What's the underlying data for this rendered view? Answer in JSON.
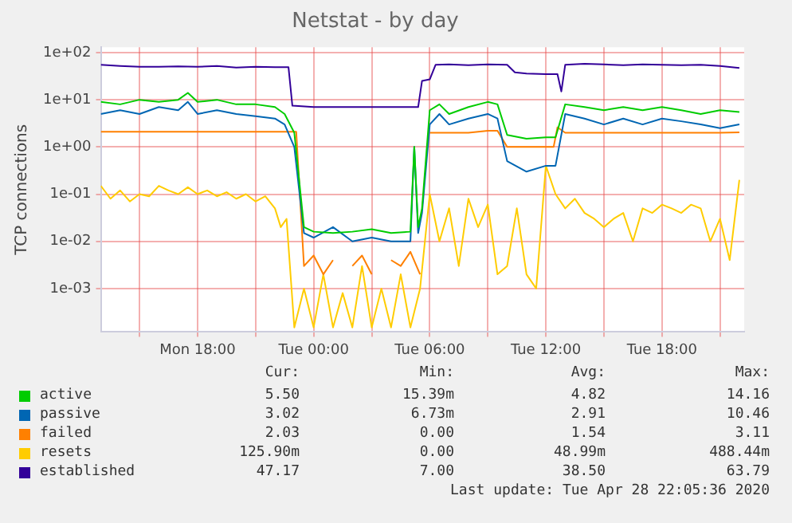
{
  "chart_data": {
    "type": "line",
    "title": "Netstat - by day",
    "ylabel": "TCP connections",
    "log": "y",
    "grid": true,
    "legend": "bottom",
    "xlim": [
      "2020-04-27T13:00",
      "2020-04-28T22:15"
    ],
    "xticks": [
      {
        "value": "2020-04-27T15:00",
        "label": null
      },
      {
        "value": "2020-04-27T18:00",
        "label": "Mon 18:00"
      },
      {
        "value": "2020-04-27T21:00",
        "label": null
      },
      {
        "value": "2020-04-28T00:00",
        "label": "Tue 00:00"
      },
      {
        "value": "2020-04-28T03:00",
        "label": null
      },
      {
        "value": "2020-04-28T06:00",
        "label": "Tue 06:00"
      },
      {
        "value": "2020-04-28T09:00",
        "label": null
      },
      {
        "value": "2020-04-28T12:00",
        "label": "Tue 12:00"
      },
      {
        "value": "2020-04-28T15:00",
        "label": null
      },
      {
        "value": "2020-04-28T18:00",
        "label": "Tue 18:00"
      },
      {
        "value": "2020-04-28T21:00",
        "label": null
      }
    ],
    "ylim": [
      0.00012,
      130
    ],
    "yticks": [
      {
        "value": 0.001,
        "label": "1e-03"
      },
      {
        "value": 0.01,
        "label": "1e-02"
      },
      {
        "value": 0.1,
        "label": "1e-01"
      },
      {
        "value": 1,
        "label": "1e+00"
      },
      {
        "value": 10,
        "label": "1e+01"
      },
      {
        "value": 100,
        "label": "1e+02"
      }
    ],
    "series": [
      {
        "name": "active",
        "color": "#00cc00",
        "x": [
          "2020-04-27T13:00",
          "2020-04-27T14:00",
          "2020-04-27T15:00",
          "2020-04-27T16:00",
          "2020-04-27T17:00",
          "2020-04-27T17:30",
          "2020-04-27T18:00",
          "2020-04-27T19:00",
          "2020-04-27T20:00",
          "2020-04-27T21:00",
          "2020-04-27T22:00",
          "2020-04-27T22:30",
          "2020-04-27T23:00",
          "2020-04-27T23:30",
          "2020-04-28T00:00",
          "2020-04-28T01:00",
          "2020-04-28T02:00",
          "2020-04-28T03:00",
          "2020-04-28T04:00",
          "2020-04-28T05:00",
          "2020-04-28T05:12",
          "2020-04-28T05:24",
          "2020-04-28T05:36",
          "2020-04-28T06:00",
          "2020-04-28T06:30",
          "2020-04-28T07:00",
          "2020-04-28T08:00",
          "2020-04-28T09:00",
          "2020-04-28T09:30",
          "2020-04-28T10:00",
          "2020-04-28T11:00",
          "2020-04-28T12:00",
          "2020-04-28T12:30",
          "2020-04-28T13:00",
          "2020-04-28T14:00",
          "2020-04-28T15:00",
          "2020-04-28T16:00",
          "2020-04-28T17:00",
          "2020-04-28T18:00",
          "2020-04-28T19:00",
          "2020-04-28T20:00",
          "2020-04-28T21:00",
          "2020-04-28T22:00"
        ],
        "values": [
          9,
          8,
          10,
          9,
          10,
          14,
          9,
          10,
          8,
          8,
          7,
          5,
          2,
          0.02,
          0.016,
          0.015,
          0.016,
          0.018,
          0.015,
          0.016,
          1,
          0.02,
          0.05,
          6,
          8,
          5,
          7,
          9,
          8,
          1.8,
          1.5,
          1.6,
          1.6,
          8,
          7,
          6,
          7,
          6,
          7,
          6,
          5,
          6,
          5.5
        ]
      },
      {
        "name": "passive",
        "color": "#0066b3",
        "x": [
          "2020-04-27T13:00",
          "2020-04-27T14:00",
          "2020-04-27T15:00",
          "2020-04-27T16:00",
          "2020-04-27T17:00",
          "2020-04-27T17:30",
          "2020-04-27T18:00",
          "2020-04-27T19:00",
          "2020-04-27T20:00",
          "2020-04-27T21:00",
          "2020-04-27T22:00",
          "2020-04-27T22:30",
          "2020-04-27T23:00",
          "2020-04-27T23:30",
          "2020-04-28T00:00",
          "2020-04-28T01:00",
          "2020-04-28T02:00",
          "2020-04-28T03:00",
          "2020-04-28T04:00",
          "2020-04-28T05:00",
          "2020-04-28T05:12",
          "2020-04-28T05:24",
          "2020-04-28T05:36",
          "2020-04-28T06:00",
          "2020-04-28T06:30",
          "2020-04-28T07:00",
          "2020-04-28T08:00",
          "2020-04-28T09:00",
          "2020-04-28T09:30",
          "2020-04-28T10:00",
          "2020-04-28T11:00",
          "2020-04-28T12:00",
          "2020-04-28T12:30",
          "2020-04-28T13:00",
          "2020-04-28T14:00",
          "2020-04-28T15:00",
          "2020-04-28T16:00",
          "2020-04-28T17:00",
          "2020-04-28T18:00",
          "2020-04-28T19:00",
          "2020-04-28T20:00",
          "2020-04-28T21:00",
          "2020-04-28T22:00"
        ],
        "values": [
          5,
          6,
          5,
          7,
          6,
          9,
          5,
          6,
          5,
          4.5,
          4,
          3,
          1,
          0.015,
          0.012,
          0.02,
          0.01,
          0.012,
          0.01,
          0.01,
          1,
          0.015,
          0.04,
          3,
          5,
          3,
          4,
          5,
          4,
          0.5,
          0.3,
          0.4,
          0.4,
          5,
          4,
          3,
          4,
          3,
          4,
          3.5,
          3,
          2.5,
          3.02
        ]
      },
      {
        "name": "failed",
        "color": "#ff8000",
        "x": [
          "2020-04-27T13:00",
          "2020-04-27T15:00",
          "2020-04-27T17:00",
          "2020-04-27T19:00",
          "2020-04-27T21:00",
          "2020-04-27T22:54",
          "2020-04-27T23:06",
          "2020-04-27T23:30",
          "2020-04-28T00:00",
          "2020-04-28T00:30",
          "2020-04-28T01:00",
          "2020-04-28T01:30",
          "2020-04-28T02:00",
          "2020-04-28T02:30",
          "2020-04-28T03:00",
          "2020-04-28T03:30",
          "2020-04-28T04:00",
          "2020-04-28T04:30",
          "2020-04-28T05:00",
          "2020-04-28T05:30",
          "2020-04-28T05:48",
          "2020-04-28T06:00",
          "2020-04-28T07:00",
          "2020-04-28T08:00",
          "2020-04-28T09:00",
          "2020-04-28T09:30",
          "2020-04-28T10:00",
          "2020-04-28T11:00",
          "2020-04-28T12:00",
          "2020-04-28T12:24",
          "2020-04-28T12:36",
          "2020-04-28T13:00",
          "2020-04-28T14:00",
          "2020-04-28T15:00",
          "2020-04-28T16:00",
          "2020-04-28T17:00",
          "2020-04-28T18:00",
          "2020-04-28T19:00",
          "2020-04-28T20:00",
          "2020-04-28T21:00",
          "2020-04-28T22:00"
        ],
        "values": [
          2.1,
          2.1,
          2.1,
          2.1,
          2.1,
          2.1,
          2.1,
          0.003,
          0.005,
          0.002,
          0.004,
          null,
          0.003,
          0.005,
          0.002,
          null,
          0.004,
          0.003,
          0.006,
          0.002,
          null,
          2,
          2,
          2,
          2.2,
          2.2,
          1,
          1,
          1,
          1,
          2.6,
          2,
          2,
          2,
          2,
          2,
          2,
          2,
          2,
          2,
          2.03
        ]
      },
      {
        "name": "resets",
        "color": "#ffcc00",
        "x": [
          "2020-04-27T13:00",
          "2020-04-27T13:30",
          "2020-04-27T14:00",
          "2020-04-27T14:30",
          "2020-04-27T15:00",
          "2020-04-27T15:30",
          "2020-04-27T16:00",
          "2020-04-27T16:30",
          "2020-04-27T17:00",
          "2020-04-27T17:30",
          "2020-04-27T18:00",
          "2020-04-27T18:30",
          "2020-04-27T19:00",
          "2020-04-27T19:30",
          "2020-04-27T20:00",
          "2020-04-27T20:30",
          "2020-04-27T21:00",
          "2020-04-27T21:30",
          "2020-04-27T22:00",
          "2020-04-27T22:18",
          "2020-04-27T22:36",
          "2020-04-27T23:00",
          "2020-04-27T23:30",
          "2020-04-28T00:00",
          "2020-04-28T00:30",
          "2020-04-28T01:00",
          "2020-04-28T01:30",
          "2020-04-28T02:00",
          "2020-04-28T02:30",
          "2020-04-28T03:00",
          "2020-04-28T03:30",
          "2020-04-28T04:00",
          "2020-04-28T04:30",
          "2020-04-28T05:00",
          "2020-04-28T05:30",
          "2020-04-28T06:00",
          "2020-04-28T06:30",
          "2020-04-28T07:00",
          "2020-04-28T07:30",
          "2020-04-28T08:00",
          "2020-04-28T08:30",
          "2020-04-28T09:00",
          "2020-04-28T09:30",
          "2020-04-28T10:00",
          "2020-04-28T10:30",
          "2020-04-28T11:00",
          "2020-04-28T11:30",
          "2020-04-28T12:00",
          "2020-04-28T12:30",
          "2020-04-28T13:00",
          "2020-04-28T13:30",
          "2020-04-28T14:00",
          "2020-04-28T14:30",
          "2020-04-28T15:00",
          "2020-04-28T15:30",
          "2020-04-28T16:00",
          "2020-04-28T16:30",
          "2020-04-28T17:00",
          "2020-04-28T17:30",
          "2020-04-28T18:00",
          "2020-04-28T18:30",
          "2020-04-28T19:00",
          "2020-04-28T19:30",
          "2020-04-28T20:00",
          "2020-04-28T20:30",
          "2020-04-28T21:00",
          "2020-04-28T21:30",
          "2020-04-28T22:00"
        ],
        "values": [
          0.15,
          0.08,
          0.12,
          0.07,
          0.1,
          0.09,
          0.15,
          0.12,
          0.1,
          0.14,
          0.1,
          0.12,
          0.09,
          0.11,
          0.08,
          0.1,
          0.07,
          0.09,
          0.05,
          0.02,
          0.03,
          0.00015,
          0.001,
          0.00015,
          0.002,
          0.00015,
          0.0008,
          0.00015,
          0.003,
          0.00015,
          0.001,
          0.00015,
          0.002,
          0.00015,
          0.001,
          0.1,
          0.01,
          0.05,
          0.003,
          0.08,
          0.02,
          0.06,
          0.002,
          0.003,
          0.05,
          0.002,
          0.001,
          0.4,
          0.1,
          0.05,
          0.08,
          0.04,
          0.03,
          0.02,
          0.03,
          0.04,
          0.01,
          0.05,
          0.04,
          0.06,
          0.05,
          0.04,
          0.06,
          0.05,
          0.01,
          0.03,
          0.004,
          0.2
        ]
      },
      {
        "name": "established",
        "color": "#330099",
        "x": [
          "2020-04-27T13:00",
          "2020-04-27T14:00",
          "2020-04-27T15:00",
          "2020-04-27T16:00",
          "2020-04-27T17:00",
          "2020-04-27T18:00",
          "2020-04-27T19:00",
          "2020-04-27T20:00",
          "2020-04-27T21:00",
          "2020-04-27T22:00",
          "2020-04-27T22:42",
          "2020-04-27T22:54",
          "2020-04-28T00:00",
          "2020-04-28T01:00",
          "2020-04-28T02:00",
          "2020-04-28T03:00",
          "2020-04-28T04:00",
          "2020-04-28T05:00",
          "2020-04-28T05:24",
          "2020-04-28T05:36",
          "2020-04-28T06:00",
          "2020-04-28T06:18",
          "2020-04-28T07:00",
          "2020-04-28T08:00",
          "2020-04-28T09:00",
          "2020-04-28T10:00",
          "2020-04-28T10:24",
          "2020-04-28T11:00",
          "2020-04-28T12:00",
          "2020-04-28T12:36",
          "2020-04-28T12:48",
          "2020-04-28T13:00",
          "2020-04-28T14:00",
          "2020-04-28T15:00",
          "2020-04-28T16:00",
          "2020-04-28T17:00",
          "2020-04-28T18:00",
          "2020-04-28T19:00",
          "2020-04-28T20:00",
          "2020-04-28T21:00",
          "2020-04-28T22:00"
        ],
        "values": [
          55,
          52,
          50,
          50,
          51,
          50,
          52,
          48,
          50,
          49,
          49,
          7.5,
          7,
          7,
          7,
          7,
          7,
          7,
          7,
          25,
          27,
          55,
          56,
          54,
          56,
          55,
          38,
          36,
          35,
          35,
          15,
          55,
          58,
          56,
          54,
          56,
          55,
          54,
          55,
          52,
          47.17
        ]
      }
    ],
    "annotations": [
      "Cur:",
      "Min:",
      "Avg:",
      "Max:",
      "5.50",
      "15.39m",
      "4.82",
      "14.16",
      "3.02",
      "6.73m",
      "2.91",
      "10.46",
      "2.03",
      "0.00",
      "1.54",
      "3.11",
      "125.90m",
      "0.00",
      "48.99m",
      "488.44m",
      "47.17",
      "7.00",
      "38.50",
      "63.79",
      "Last update: Tue Apr 28 22:05:36 2020"
    ]
  }
}
